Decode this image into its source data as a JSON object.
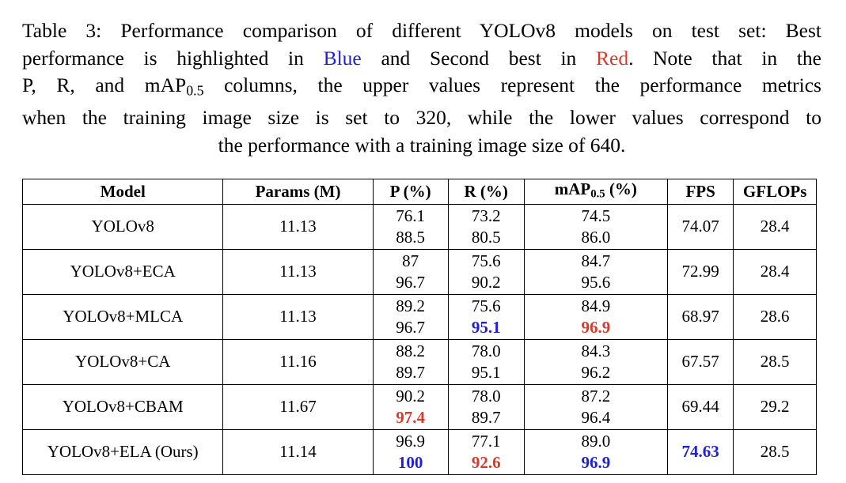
{
  "caption": {
    "l1": "Table 3: Performance comparison of different YOLOv8 models on test set: Best",
    "l2_a": "performance is highlighted in",
    "l2_blue": "Blue",
    "l2_b": "and Second best in",
    "l2_red": "Red",
    "l2_c": ". Note that in the",
    "l3_a": "P, R, and mAP",
    "l3_sub": "0.5",
    "l3_b": " columns, the upper values represent the performance metrics",
    "l4": "when the training image size is set to 320, while the lower values correspond to",
    "l5": "the performance with a training image size of 640."
  },
  "table": {
    "headers": {
      "model": "Model",
      "params": "Params (M)",
      "p": "P (%)",
      "r": "R (%)",
      "map_a": "mAP",
      "map_sub": "0.5",
      "map_b": " (%)",
      "fps": "FPS",
      "gflops": "GFLOPs"
    },
    "rows": [
      {
        "model": "YOLOv8",
        "params": "11.13",
        "p": [
          "76.1",
          "88.5"
        ],
        "r": [
          "73.2",
          "80.5"
        ],
        "map": [
          "74.5",
          "86.0"
        ],
        "fps": "74.07",
        "gflops": "28.4"
      },
      {
        "model": "YOLOv8+ECA",
        "params": "11.13",
        "p": [
          "87",
          "96.7"
        ],
        "r": [
          "75.6",
          "90.2"
        ],
        "map": [
          "84.7",
          "95.6"
        ],
        "fps": "72.99",
        "gflops": "28.4"
      },
      {
        "model": "YOLOv8+MLCA",
        "params": "11.13",
        "p": [
          "89.2",
          "96.7"
        ],
        "r": [
          "75.6",
          "95.1"
        ],
        "map": [
          "84.9",
          "96.9"
        ],
        "fps": "68.97",
        "gflops": "28.6"
      },
      {
        "model": "YOLOv8+CA",
        "params": "11.16",
        "p": [
          "88.2",
          "89.7"
        ],
        "r": [
          "78.0",
          "95.1"
        ],
        "map": [
          "84.3",
          "96.2"
        ],
        "fps": "67.57",
        "gflops": "28.5"
      },
      {
        "model": "YOLOv8+CBAM",
        "params": "11.67",
        "p": [
          "90.2",
          "97.4"
        ],
        "r": [
          "78.0",
          "89.7"
        ],
        "map": [
          "87.2",
          "96.4"
        ],
        "fps": "69.44",
        "gflops": "29.2"
      },
      {
        "model": "YOLOv8+ELA (Ours)",
        "params": "11.14",
        "p": [
          "96.9",
          "100"
        ],
        "r": [
          "77.1",
          "92.6"
        ],
        "map": [
          "89.0",
          "96.9"
        ],
        "fps": "74.63",
        "gflops": "28.5"
      }
    ]
  },
  "colors": {
    "best": "#1f1fd6",
    "second": "#d93a2b"
  }
}
